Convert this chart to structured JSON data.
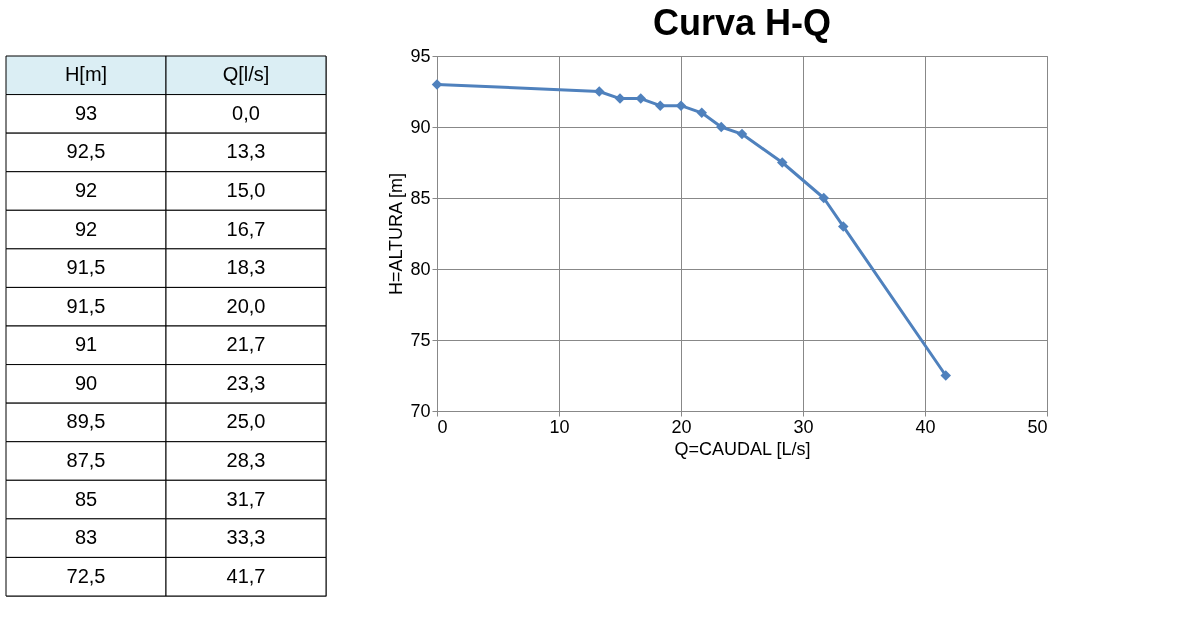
{
  "chart_data": [
    {
      "type": "other",
      "annotations": [
        "H[m]",
        "Q[l/s]",
        "93",
        "0,0",
        "92,5",
        "13,3",
        "92",
        "15,0",
        "92",
        "16,7",
        "91,5",
        "18,3",
        "91,5",
        "20,0",
        "91",
        "21,7",
        "90",
        "23,3",
        "89,5",
        "25,0",
        "87,5",
        "28,3",
        "85",
        "31,7",
        "83",
        "33,3",
        "72,5",
        "41,7"
      ]
    },
    {
      "type": "line",
      "title": "Curva H-Q",
      "xlabel": "Q=CAUDAL [L/s]",
      "ylabel": "H=ALTURA [m]",
      "x": [
        0.0,
        13.3,
        15.0,
        16.7,
        18.3,
        20.0,
        21.7,
        23.3,
        25.0,
        28.3,
        31.7,
        33.3,
        41.7
      ],
      "series": [
        {
          "color": "#4f81bd",
          "values": [
            93,
            92.5,
            92,
            92,
            91.5,
            91.5,
            91,
            90,
            89.5,
            87.5,
            85,
            83,
            72.5
          ]
        }
      ],
      "xlim": [
        0,
        50
      ],
      "xticks": [
        0,
        10,
        20,
        30,
        40,
        50
      ],
      "ylim": [
        70,
        95
      ],
      "yticks": [
        70,
        75,
        80,
        85,
        90,
        95
      ],
      "grid": true,
      "marker": "diamond",
      "line_style": "solid",
      "legend": false
    }
  ]
}
